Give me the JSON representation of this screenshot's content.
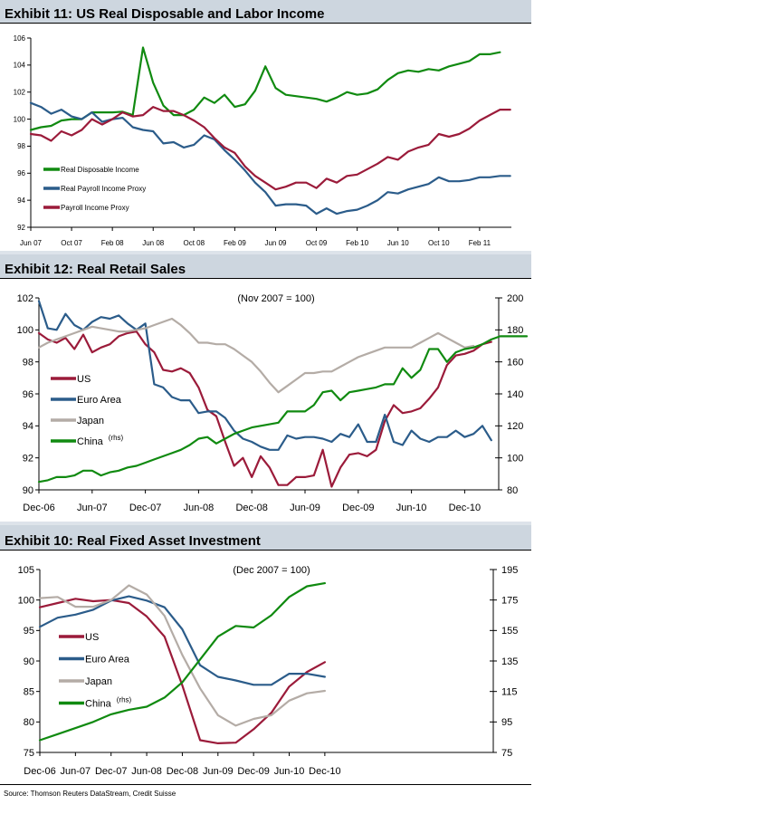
{
  "source": "Source: Thomson Reuters DataStream, Credit Suisse",
  "chart_data": [
    {
      "id": "exhibit11",
      "type": "line",
      "title": "Exhibit 11: US Real Disposable and Labor Income",
      "subtitle": "",
      "xlabel": "",
      "ylabel": "",
      "ylim": [
        92,
        106
      ],
      "yticks": [
        92,
        94,
        96,
        98,
        100,
        102,
        104,
        106
      ],
      "x_start": "Jun 07",
      "x_frequency": "monthly",
      "xtick_labels": [
        "Jun 07",
        "Oct 07",
        "Feb 08",
        "Jun 08",
        "Oct 08",
        "Feb 09",
        "Jun 09",
        "Oct 09",
        "Feb 10",
        "Jun 10",
        "Oct 10",
        "Feb 11"
      ],
      "grid": false,
      "legend_position": "bottom-left",
      "series": [
        {
          "name": "Real Disposable Income",
          "color": "#108a10",
          "axis": "left",
          "values": [
            99.2,
            99.4,
            99.5,
            99.9,
            100.0,
            100.0,
            100.5,
            100.5,
            100.5,
            100.55,
            100.3,
            105.3,
            102.7,
            101.0,
            100.3,
            100.3,
            100.7,
            101.6,
            101.2,
            101.8,
            100.9,
            101.1,
            102.1,
            103.9,
            102.3,
            101.8,
            101.7,
            101.6,
            101.5,
            101.3,
            101.6,
            102.0,
            101.8,
            101.9,
            102.2,
            102.9,
            103.4,
            103.6,
            103.5,
            103.7,
            103.6,
            103.9,
            104.1,
            104.3,
            104.8,
            104.8,
            104.95
          ]
        },
        {
          "name": "Real Payroll Income Proxy",
          "color": "#2b5c8a",
          "axis": "left",
          "values": [
            101.2,
            100.9,
            100.4,
            100.7,
            100.2,
            100.0,
            100.5,
            99.8,
            100.0,
            100.1,
            99.4,
            99.2,
            99.1,
            98.2,
            98.3,
            97.9,
            98.1,
            98.8,
            98.5,
            97.7,
            97.0,
            96.2,
            95.3,
            94.6,
            93.6,
            93.7,
            93.7,
            93.6,
            93.0,
            93.4,
            93.0,
            93.2,
            93.3,
            93.6,
            94.0,
            94.6,
            94.5,
            94.8,
            95.0,
            95.2,
            95.7,
            95.4,
            95.4,
            95.5,
            95.7,
            95.7,
            95.8,
            95.8
          ]
        },
        {
          "name": "Payroll Income Proxy",
          "color": "#9b1b3a",
          "axis": "left",
          "values": [
            98.9,
            98.8,
            98.4,
            99.1,
            98.8,
            99.2,
            100.0,
            99.6,
            100.0,
            100.5,
            100.2,
            100.3,
            100.9,
            100.6,
            100.6,
            100.3,
            99.9,
            99.4,
            98.6,
            97.9,
            97.5,
            96.5,
            95.8,
            95.3,
            94.8,
            95.0,
            95.3,
            95.3,
            94.9,
            95.6,
            95.3,
            95.8,
            95.9,
            96.3,
            96.7,
            97.2,
            97.0,
            97.6,
            97.9,
            98.1,
            98.9,
            98.7,
            98.9,
            99.3,
            99.9,
            100.3,
            100.7,
            100.7
          ]
        }
      ]
    },
    {
      "id": "exhibit12",
      "type": "line",
      "title": "Exhibit 12: Real Retail Sales",
      "subtitle": "(Nov 2007 = 100)",
      "xlabel": "",
      "ylabel": "",
      "ylim": [
        90,
        102
      ],
      "yticks": [
        90,
        92,
        94,
        96,
        98,
        100,
        102
      ],
      "y2lim": [
        80,
        200
      ],
      "y2ticks": [
        80,
        100,
        120,
        140,
        160,
        180,
        200
      ],
      "x_start": "Dec-06",
      "x_frequency": "monthly",
      "xtick_labels": [
        "Dec-06",
        "Jun-07",
        "Dec-07",
        "Jun-08",
        "Dec-08",
        "Jun-09",
        "Dec-09",
        "Jun-10",
        "Dec-10"
      ],
      "grid": false,
      "legend_position": "middle-left",
      "series": [
        {
          "name": "US",
          "legend_suffix": "",
          "color": "#9b1b3a",
          "axis": "left",
          "values": [
            99.8,
            99.4,
            99.2,
            99.5,
            98.8,
            99.7,
            98.6,
            98.9,
            99.1,
            99.6,
            99.8,
            99.9,
            99.1,
            98.6,
            97.5,
            97.4,
            97.6,
            97.3,
            96.4,
            95.0,
            94.6,
            93.0,
            91.5,
            92.0,
            90.8,
            92.1,
            91.4,
            90.3,
            90.3,
            90.8,
            90.8,
            90.9,
            92.5,
            90.2,
            91.4,
            92.2,
            92.3,
            92.1,
            92.5,
            94.3,
            95.3,
            94.8,
            94.9,
            95.1,
            95.7,
            96.4,
            97.8,
            98.4,
            98.5,
            98.7,
            99.1,
            99.25
          ]
        },
        {
          "name": "Euro Area",
          "legend_suffix": "",
          "color": "#2b5c8a",
          "axis": "left",
          "values": [
            101.8,
            100.1,
            100.0,
            101.0,
            100.3,
            100.0,
            100.5,
            100.8,
            100.7,
            100.9,
            100.4,
            100.0,
            100.4,
            96.6,
            96.4,
            95.8,
            95.6,
            95.6,
            94.8,
            94.9,
            94.9,
            94.5,
            93.7,
            93.2,
            93.0,
            92.7,
            92.5,
            92.5,
            93.4,
            93.2,
            93.3,
            93.3,
            93.2,
            93.0,
            93.5,
            93.3,
            94.1,
            93.0,
            93.0,
            94.7,
            93.0,
            92.8,
            93.7,
            93.2,
            93.0,
            93.3,
            93.3,
            93.7,
            93.3,
            93.5,
            94.0,
            93.1
          ]
        },
        {
          "name": "Japan",
          "legend_suffix": "",
          "color": "#b4aca6",
          "axis": "left",
          "values": [
            98.9,
            99.2,
            99.4,
            99.6,
            99.8,
            100.0,
            100.2,
            100.1,
            100.0,
            99.9,
            99.9,
            100.0,
            100.1,
            100.3,
            100.5,
            100.7,
            100.3,
            99.8,
            99.2,
            99.2,
            99.1,
            99.1,
            98.8,
            98.4,
            98.0,
            97.4,
            96.7,
            96.1,
            96.5,
            96.9,
            97.3,
            97.3,
            97.4,
            97.4,
            97.7,
            98.0,
            98.3,
            98.5,
            98.7,
            98.9,
            98.9,
            98.9,
            98.9,
            99.2,
            99.5,
            99.8,
            99.5,
            99.2,
            98.9,
            99.0
          ]
        },
        {
          "name": "China",
          "legend_suffix": "(rhs)",
          "color": "#108a10",
          "axis": "right",
          "values": [
            85,
            86,
            88,
            88,
            89,
            92,
            92,
            89,
            91,
            92,
            94,
            95,
            97,
            99,
            101,
            103,
            105,
            108,
            112,
            113,
            109,
            112,
            115,
            117,
            119,
            120,
            121,
            122,
            129,
            129,
            129,
            133,
            141,
            142,
            136,
            141,
            142,
            143,
            144,
            146,
            146,
            156,
            150,
            155,
            168,
            168,
            160,
            166,
            168,
            169,
            171,
            174,
            176,
            176,
            176,
            176
          ]
        }
      ]
    },
    {
      "id": "exhibit10",
      "type": "line",
      "title": "Exhibit 10: Real Fixed Asset Investment",
      "subtitle": "(Dec 2007 = 100)",
      "xlabel": "",
      "ylabel": "",
      "ylim": [
        75,
        105
      ],
      "yticks": [
        75,
        80,
        85,
        90,
        95,
        100,
        105
      ],
      "y2lim": [
        75,
        195
      ],
      "y2ticks": [
        75,
        95,
        115,
        135,
        155,
        175,
        195
      ],
      "x_start": "Dec-06",
      "x_frequency": "quarterly",
      "xtick_labels": [
        "Dec-06",
        "Jun-07",
        "Dec-07",
        "Jun-08",
        "Dec-08",
        "Jun-09",
        "Dec-09",
        "Jun-10",
        "Dec-10"
      ],
      "grid": false,
      "legend_position": "middle-left",
      "series": [
        {
          "name": "US",
          "legend_suffix": "",
          "color": "#9b1b3a",
          "axis": "left",
          "values": [
            98.8,
            99.5,
            100.2,
            99.8,
            100.0,
            99.5,
            97.3,
            94.0,
            86.0,
            77.0,
            76.5,
            76.6,
            78.8,
            81.5,
            85.8,
            88.2,
            89.8
          ]
        },
        {
          "name": "Euro Area",
          "legend_suffix": "",
          "color": "#2b5c8a",
          "axis": "left",
          "values": [
            95.6,
            97.1,
            97.6,
            98.4,
            99.9,
            100.6,
            99.9,
            98.8,
            95.2,
            89.3,
            87.4,
            86.8,
            86.1,
            86.1,
            87.9,
            87.9,
            87.4
          ]
        },
        {
          "name": "Japan",
          "legend_suffix": "",
          "color": "#b4aca6",
          "axis": "left",
          "values": [
            100.3,
            100.5,
            98.9,
            98.9,
            100.0,
            102.4,
            100.9,
            97.4,
            91.0,
            85.5,
            81.1,
            79.4,
            80.5,
            81.1,
            83.5,
            84.7,
            85.1
          ]
        },
        {
          "name": "China",
          "legend_suffix": "(rhs)",
          "color": "#108a10",
          "axis": "right",
          "values": [
            83,
            87,
            91,
            95,
            100,
            103,
            105,
            111,
            121,
            136,
            151,
            158,
            157,
            165,
            177,
            184,
            186
          ]
        }
      ]
    }
  ]
}
